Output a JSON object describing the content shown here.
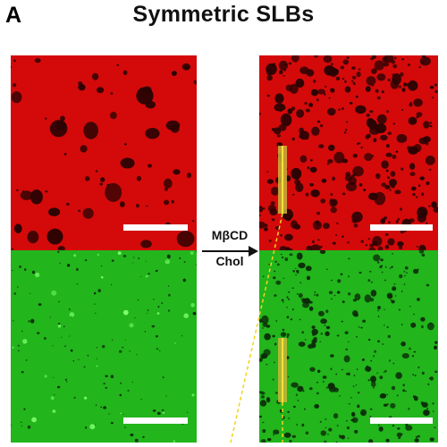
{
  "figure": {
    "panel_letter": "A",
    "title": "Symmetric SLBs",
    "treatment_top": "MβCD",
    "treatment_bottom": "Chol"
  },
  "colors": {
    "red_channel": "#d40a0a",
    "red_domain": "#2a0303",
    "green_channel": "#22b51c",
    "green_domain": "#0b2a08",
    "green_bright": "#7dff6b",
    "scale_bar": "#ffffff",
    "profile_line": "#f2d41c"
  },
  "icons": [
    "right-arrow-icon"
  ]
}
